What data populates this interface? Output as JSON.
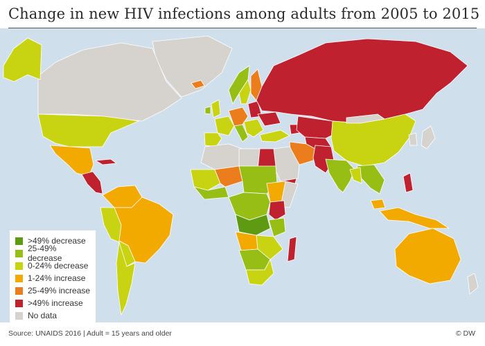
{
  "title": "Change in new HIV infections among adults from 2005 to 2015",
  "legend": [
    {
      "label": ">49% decrease",
      "color": "#5e9b12"
    },
    {
      "label": "25-49% decrease",
      "color": "#97be15"
    },
    {
      "label": "0-24% decrease",
      "color": "#c8d412"
    },
    {
      "label": "1-24% increase",
      "color": "#f2a900"
    },
    {
      "label": "25-49% increase",
      "color": "#ec7d1c"
    },
    {
      "label": ">49% increase",
      "color": "#c0212f"
    },
    {
      "label": "No data",
      "color": "#d6d2ce"
    }
  ],
  "colors": {
    "ocean": "#cfe0ec",
    "border": "#ffffff"
  },
  "footer": {
    "source": "Source: UNAIDS 2016 | Adult = 15 years and older",
    "credit": "© DW"
  }
}
